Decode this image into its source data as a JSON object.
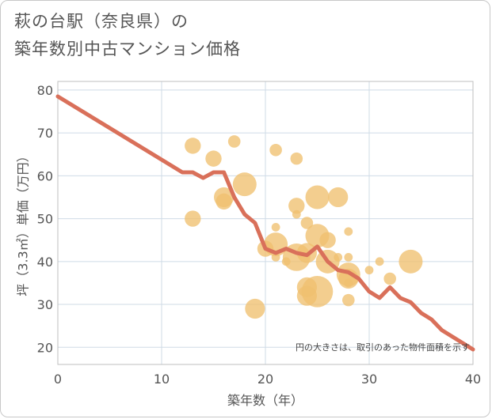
{
  "chart_data": {
    "type": "scatter",
    "title_lines": [
      "萩の台駅（奈良県）の",
      "築年数別中古マンション価格"
    ],
    "xlabel": "築年数（年）",
    "ylabel": "坪（3.3㎡）単価（万円）",
    "xlim": [
      0,
      40
    ],
    "ylim": [
      16,
      82
    ],
    "x_ticks": [
      0,
      10,
      20,
      30,
      40
    ],
    "y_ticks": [
      20,
      30,
      40,
      50,
      60,
      70,
      80
    ],
    "grid": true,
    "note": "円の大きさは、取引のあった物件面積を示す",
    "bubble_color": "#f0c070",
    "line_color": "#d9705a",
    "points": [
      {
        "x": 13,
        "y": 67,
        "size": 3
      },
      {
        "x": 13,
        "y": 50,
        "size": 3
      },
      {
        "x": 15,
        "y": 64,
        "size": 3
      },
      {
        "x": 16,
        "y": 55,
        "size": 4
      },
      {
        "x": 16,
        "y": 54,
        "size": 3
      },
      {
        "x": 17,
        "y": 68,
        "size": 2
      },
      {
        "x": 18,
        "y": 58,
        "size": 5
      },
      {
        "x": 19,
        "y": 29,
        "size": 4
      },
      {
        "x": 20,
        "y": 43,
        "size": 3
      },
      {
        "x": 21,
        "y": 66,
        "size": 2
      },
      {
        "x": 21,
        "y": 48,
        "size": 1
      },
      {
        "x": 21,
        "y": 44,
        "size": 5
      },
      {
        "x": 21,
        "y": 41,
        "size": 1
      },
      {
        "x": 22,
        "y": 40,
        "size": 1
      },
      {
        "x": 23,
        "y": 64,
        "size": 2
      },
      {
        "x": 23,
        "y": 53,
        "size": 3
      },
      {
        "x": 23,
        "y": 51,
        "size": 1
      },
      {
        "x": 23,
        "y": 41,
        "size": 6
      },
      {
        "x": 24,
        "y": 49,
        "size": 2
      },
      {
        "x": 24,
        "y": 42,
        "size": 4
      },
      {
        "x": 24,
        "y": 34,
        "size": 4
      },
      {
        "x": 24,
        "y": 32,
        "size": 4
      },
      {
        "x": 25,
        "y": 55,
        "size": 5
      },
      {
        "x": 25,
        "y": 46,
        "size": 5
      },
      {
        "x": 25,
        "y": 33,
        "size": 7
      },
      {
        "x": 26,
        "y": 45,
        "size": 3
      },
      {
        "x": 26,
        "y": 40,
        "size": 5
      },
      {
        "x": 27,
        "y": 55,
        "size": 4
      },
      {
        "x": 27,
        "y": 41,
        "size": 1
      },
      {
        "x": 28,
        "y": 47,
        "size": 1
      },
      {
        "x": 28,
        "y": 41,
        "size": 1
      },
      {
        "x": 28,
        "y": 37,
        "size": 5
      },
      {
        "x": 28,
        "y": 36,
        "size": 4
      },
      {
        "x": 28,
        "y": 35,
        "size": 1
      },
      {
        "x": 28,
        "y": 31,
        "size": 2
      },
      {
        "x": 30,
        "y": 38,
        "size": 1
      },
      {
        "x": 31,
        "y": 40,
        "size": 1
      },
      {
        "x": 32,
        "y": 36,
        "size": 2
      },
      {
        "x": 34,
        "y": 40,
        "size": 5
      }
    ],
    "trend_line": {
      "x": [
        0,
        12,
        13,
        14,
        15,
        16,
        17,
        18,
        19,
        20,
        21,
        22,
        23,
        24,
        25,
        26,
        27,
        28,
        29,
        30,
        31,
        32,
        33,
        34,
        35,
        36,
        37,
        38,
        39,
        40
      ],
      "y": [
        78.5,
        60.8,
        60.8,
        59.5,
        60.8,
        60.8,
        55,
        51,
        49,
        43,
        42,
        43,
        42,
        41.5,
        43.5,
        40,
        38,
        37.5,
        36,
        33,
        31.5,
        34,
        31.5,
        30.5,
        28,
        26.5,
        24,
        22.5,
        21,
        19.5
      ]
    }
  }
}
